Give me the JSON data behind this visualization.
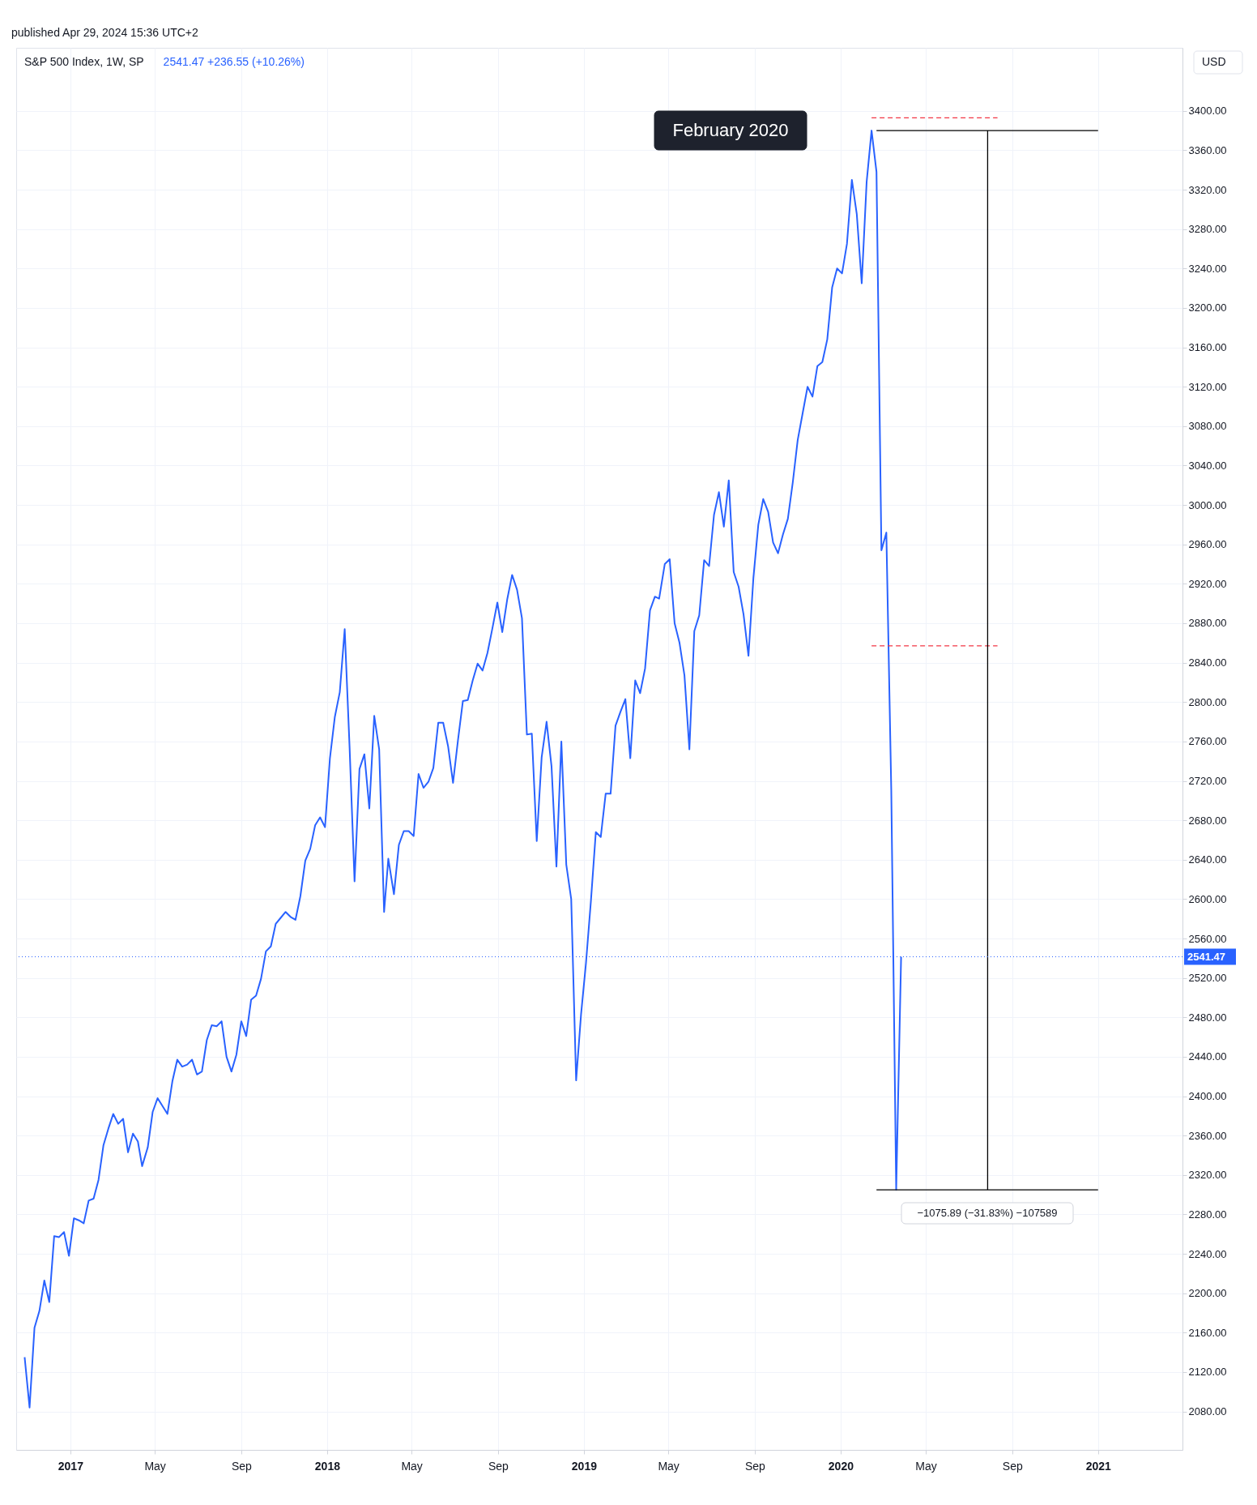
{
  "chart_data": {
    "type": "line",
    "title": "S&P 500 Index, 1W, SP",
    "annotations": [
      "published Apr 29, 2024 15:36 UTC+2",
      "2541.47  +236.55 (+10.26%)",
      "USD",
      "February 2020",
      "−1075.89 (−31.83%) −107589"
    ],
    "xlim": [
      "2016-10-16",
      "2021-05-01"
    ],
    "xticks": [
      {
        "value": "2017-01-01",
        "label": "2017"
      },
      {
        "value": "2017-05-01",
        "label": "May"
      },
      {
        "value": "2017-09-01",
        "label": "Sep"
      },
      {
        "value": "2018-01-01",
        "label": "2018"
      },
      {
        "value": "2018-05-01",
        "label": "May"
      },
      {
        "value": "2018-09-01",
        "label": "Sep"
      },
      {
        "value": "2019-01-01",
        "label": "2019"
      },
      {
        "value": "2019-05-01",
        "label": "May"
      },
      {
        "value": "2019-09-01",
        "label": "Sep"
      },
      {
        "value": "2020-01-01",
        "label": "2020"
      },
      {
        "value": "2020-05-01",
        "label": "May"
      },
      {
        "value": "2020-09-01",
        "label": "Sep"
      },
      {
        "value": "2021-01-01",
        "label": "2021"
      }
    ],
    "ylim": [
      2041,
      3464
    ],
    "yticks": [
      {
        "value": 2080,
        "label": "2080.00"
      },
      {
        "value": 2120,
        "label": "2120.00"
      },
      {
        "value": 2160,
        "label": "2160.00"
      },
      {
        "value": 2200,
        "label": "2200.00"
      },
      {
        "value": 2240,
        "label": "2240.00"
      },
      {
        "value": 2280,
        "label": "2280.00"
      },
      {
        "value": 2320,
        "label": "2320.00"
      },
      {
        "value": 2360,
        "label": "2360.00"
      },
      {
        "value": 2400,
        "label": "2400.00"
      },
      {
        "value": 2440,
        "label": "2440.00"
      },
      {
        "value": 2480,
        "label": "2480.00"
      },
      {
        "value": 2520,
        "label": "2520.00"
      },
      {
        "value": 2560,
        "label": "2560.00"
      },
      {
        "value": 2600,
        "label": "2600.00"
      },
      {
        "value": 2640,
        "label": "2640.00"
      },
      {
        "value": 2680,
        "label": "2680.00"
      },
      {
        "value": 2720,
        "label": "2720.00"
      },
      {
        "value": 2760,
        "label": "2760.00"
      },
      {
        "value": 2800,
        "label": "2800.00"
      },
      {
        "value": 2840,
        "label": "2840.00"
      },
      {
        "value": 2880,
        "label": "2880.00"
      },
      {
        "value": 2920,
        "label": "2920.00"
      },
      {
        "value": 2960,
        "label": "2960.00"
      },
      {
        "value": 3000,
        "label": "3000.00"
      },
      {
        "value": 3040,
        "label": "3040.00"
      },
      {
        "value": 3080,
        "label": "3080.00"
      },
      {
        "value": 3120,
        "label": "3120.00"
      },
      {
        "value": 3160,
        "label": "3160.00"
      },
      {
        "value": 3200,
        "label": "3200.00"
      },
      {
        "value": 3240,
        "label": "3240.00"
      },
      {
        "value": 3280,
        "label": "3280.00"
      },
      {
        "value": 3320,
        "label": "3320.00"
      },
      {
        "value": 3360,
        "label": "3360.00"
      },
      {
        "value": 3400,
        "label": "3400.00"
      }
    ],
    "grid": true,
    "ref_lines": [
      {
        "axis": "y",
        "value": 2541.47,
        "label": "2541.47",
        "color": "#2962ff",
        "line_style": "dotted"
      }
    ],
    "series": [
      {
        "color": "#2962ff",
        "line_style": "solid",
        "x": [
          "2016-10-28",
          "2016-11-04",
          "2016-11-11",
          "2016-11-18",
          "2016-11-25",
          "2016-12-02",
          "2016-12-09",
          "2016-12-16",
          "2016-12-23",
          "2016-12-30",
          "2017-01-06",
          "2017-01-13",
          "2017-01-20",
          "2017-01-27",
          "2017-02-03",
          "2017-02-10",
          "2017-02-17",
          "2017-02-24",
          "2017-03-03",
          "2017-03-10",
          "2017-03-17",
          "2017-03-24",
          "2017-03-31",
          "2017-04-07",
          "2017-04-13",
          "2017-04-21",
          "2017-04-28",
          "2017-05-05",
          "2017-05-12",
          "2017-05-19",
          "2017-05-26",
          "2017-06-02",
          "2017-06-09",
          "2017-06-16",
          "2017-06-23",
          "2017-06-30",
          "2017-07-07",
          "2017-07-14",
          "2017-07-21",
          "2017-07-28",
          "2017-08-04",
          "2017-08-11",
          "2017-08-18",
          "2017-08-25",
          "2017-09-01",
          "2017-09-08",
          "2017-09-15",
          "2017-09-22",
          "2017-09-29",
          "2017-10-06",
          "2017-10-13",
          "2017-10-20",
          "2017-10-27",
          "2017-11-03",
          "2017-11-10",
          "2017-11-17",
          "2017-11-24",
          "2017-12-01",
          "2017-12-08",
          "2017-12-15",
          "2017-12-22",
          "2017-12-29",
          "2018-01-05",
          "2018-01-12",
          "2018-01-19",
          "2018-01-26",
          "2018-02-02",
          "2018-02-09",
          "2018-02-16",
          "2018-02-23",
          "2018-03-02",
          "2018-03-09",
          "2018-03-16",
          "2018-03-23",
          "2018-03-29",
          "2018-04-06",
          "2018-04-13",
          "2018-04-20",
          "2018-04-27",
          "2018-05-04",
          "2018-05-11",
          "2018-05-18",
          "2018-05-25",
          "2018-06-01",
          "2018-06-08",
          "2018-06-15",
          "2018-06-22",
          "2018-06-29",
          "2018-07-06",
          "2018-07-13",
          "2018-07-20",
          "2018-07-27",
          "2018-08-03",
          "2018-08-10",
          "2018-08-17",
          "2018-08-24",
          "2018-08-31",
          "2018-09-07",
          "2018-09-14",
          "2018-09-21",
          "2018-09-28",
          "2018-10-05",
          "2018-10-12",
          "2018-10-19",
          "2018-10-26",
          "2018-11-02",
          "2018-11-09",
          "2018-11-16",
          "2018-11-23",
          "2018-11-30",
          "2018-12-07",
          "2018-12-14",
          "2018-12-21",
          "2018-12-28",
          "2019-01-04",
          "2019-01-11",
          "2019-01-18",
          "2019-01-25",
          "2019-02-01",
          "2019-02-08",
          "2019-02-15",
          "2019-02-22",
          "2019-03-01",
          "2019-03-08",
          "2019-03-15",
          "2019-03-22",
          "2019-03-29",
          "2019-04-05",
          "2019-04-12",
          "2019-04-18",
          "2019-04-26",
          "2019-05-03",
          "2019-05-10",
          "2019-05-17",
          "2019-05-24",
          "2019-05-31",
          "2019-06-07",
          "2019-06-14",
          "2019-06-21",
          "2019-06-28",
          "2019-07-05",
          "2019-07-12",
          "2019-07-19",
          "2019-07-26",
          "2019-08-02",
          "2019-08-09",
          "2019-08-16",
          "2019-08-23",
          "2019-08-30",
          "2019-09-06",
          "2019-09-13",
          "2019-09-20",
          "2019-09-27",
          "2019-10-04",
          "2019-10-11",
          "2019-10-18",
          "2019-10-25",
          "2019-11-01",
          "2019-11-08",
          "2019-11-15",
          "2019-11-22",
          "2019-11-29",
          "2019-12-06",
          "2019-12-13",
          "2019-12-20",
          "2019-12-27",
          "2020-01-03",
          "2020-01-10",
          "2020-01-17",
          "2020-01-24",
          "2020-01-31",
          "2020-02-07",
          "2020-02-14",
          "2020-02-21",
          "2020-02-28",
          "2020-03-06",
          "2020-03-13",
          "2020-03-20",
          "2020-03-27"
        ],
        "values": [
          2135,
          2084,
          2165,
          2182,
          2213,
          2191,
          2258,
          2257,
          2262,
          2238,
          2276,
          2274,
          2271,
          2294,
          2296,
          2315,
          2350,
          2367,
          2382,
          2372,
          2377,
          2343,
          2362,
          2354,
          2329,
          2348,
          2384,
          2398,
          2390,
          2382,
          2415,
          2437,
          2430,
          2432,
          2437,
          2422,
          2425,
          2457,
          2472,
          2471,
          2476,
          2440,
          2425,
          2442,
          2476,
          2461,
          2498,
          2502,
          2519,
          2547,
          2552,
          2575,
          2581,
          2587,
          2582,
          2579,
          2603,
          2639,
          2651,
          2675,
          2683,
          2673,
          2743,
          2785,
          2810,
          2874,
          2753,
          2618,
          2732,
          2747,
          2692,
          2786,
          2752,
          2587,
          2641,
          2605,
          2655,
          2669,
          2669,
          2664,
          2727,
          2713,
          2719,
          2733,
          2779,
          2779,
          2755,
          2718,
          2761,
          2801,
          2802,
          2822,
          2839,
          2832,
          2850,
          2875,
          2901,
          2871,
          2904,
          2929,
          2914,
          2885,
          2767,
          2768,
          2659,
          2744,
          2780,
          2735,
          2633,
          2760,
          2635,
          2600,
          2416,
          2483,
          2535,
          2598,
          2668,
          2663,
          2707,
          2707,
          2776,
          2790,
          2803,
          2743,
          2822,
          2809,
          2834,
          2893,
          2907,
          2905,
          2940,
          2945,
          2880,
          2860,
          2827,
          2752,
          2872,
          2888,
          2944,
          2938,
          2990,
          3013,
          2978,
          3025,
          2932,
          2917,
          2889,
          2847,
          2926,
          2980,
          3006,
          2993,
          2962,
          2951,
          2970,
          2986,
          3023,
          3066,
          3093,
          3120,
          3110,
          3141,
          3145,
          3168,
          3221,
          3240,
          3235,
          3265,
          3330,
          3295,
          3225,
          3328,
          3380,
          3338,
          2954,
          2972,
          2711,
          2305,
          2541.47
        ]
      },
      {
        "type": "line",
        "color": "#f23645",
        "line_style": "dashed",
        "x": [
          "2020-02-14",
          "2020-08-11"
        ],
        "values": [
          3393,
          3393
        ]
      },
      {
        "type": "line",
        "color": "#f23645",
        "line_style": "dashed",
        "x": [
          "2020-02-14",
          "2020-08-11"
        ],
        "values": [
          2857,
          2857
        ]
      },
      {
        "type": "line",
        "color": "#000000",
        "line_style": "solid",
        "x": [
          "2020-02-21",
          "2021-01-01"
        ],
        "values": [
          3380,
          3380
        ]
      },
      {
        "type": "line",
        "color": "#000000",
        "line_style": "solid",
        "x": [
          "2020-02-21",
          "2021-01-01"
        ],
        "values": [
          2305,
          2305
        ]
      },
      {
        "type": "line",
        "color": "#000000",
        "line_style": "solid",
        "x": [
          "2020-07-28",
          "2020-07-28"
        ],
        "values": [
          3380,
          2305
        ]
      }
    ]
  }
}
